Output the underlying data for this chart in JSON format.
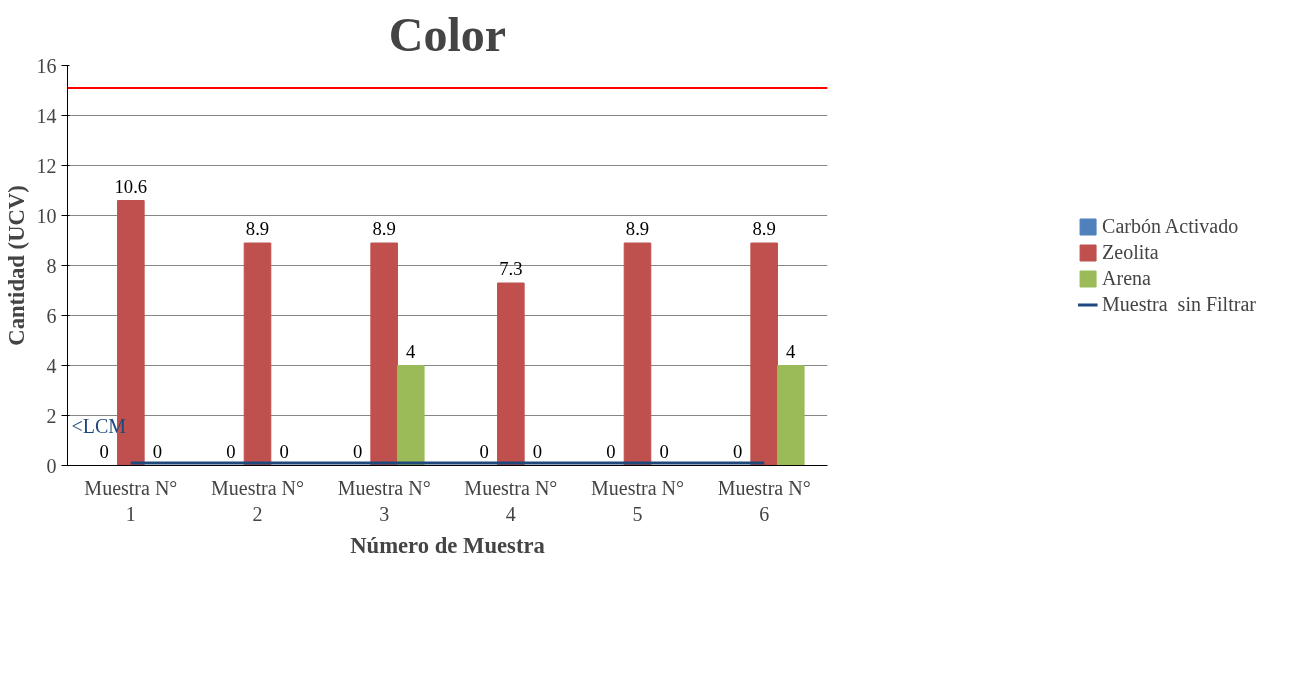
{
  "chart_data": {
    "type": "bar",
    "title": "Color",
    "xlabel": "Número de Muestra",
    "ylabel": "Cantidad (UCV)",
    "categories": [
      "Muestra N°\n1",
      "Muestra N°\n2",
      "Muestra N°\n3",
      "Muestra N°\n4",
      "Muestra N°\n5",
      "Muestra N°\n6"
    ],
    "series": [
      {
        "name": "Carbón Activado",
        "color": "#4f81bd",
        "values": [
          0,
          0,
          0,
          0,
          0,
          0
        ],
        "value_labels": [
          "0",
          "0",
          "0",
          "0",
          "0",
          "0"
        ]
      },
      {
        "name": "Zeolita",
        "color": "#c0504d",
        "values": [
          10.6,
          8.9,
          8.9,
          7.3,
          8.9,
          8.9
        ],
        "value_labels": [
          "10.6",
          "8.9",
          "8.9",
          "7.3",
          "8.9",
          "8.9"
        ]
      },
      {
        "name": "Arena",
        "color": "#9bbb59",
        "values": [
          0,
          0,
          4,
          0,
          0,
          4
        ],
        "value_labels": [
          "0",
          "0",
          "4",
          "0",
          "0",
          "4"
        ]
      },
      {
        "name": "Muestra  sin Filtrar",
        "type": "line",
        "color": "#1f497d",
        "values": [
          0.1,
          0.1,
          0.1,
          0.1,
          0.1,
          0.1
        ]
      }
    ],
    "ylim": [
      0,
      16
    ],
    "yticks": [
      0,
      2,
      4,
      6,
      8,
      10,
      12,
      14,
      16
    ],
    "grid": "y",
    "legend": "right",
    "ref_lines": [
      {
        "axis": "y",
        "value": 15.1,
        "color": "#ff0000"
      }
    ],
    "annotations": [
      {
        "text": "<LCM",
        "y": 0.1
      }
    ]
  }
}
